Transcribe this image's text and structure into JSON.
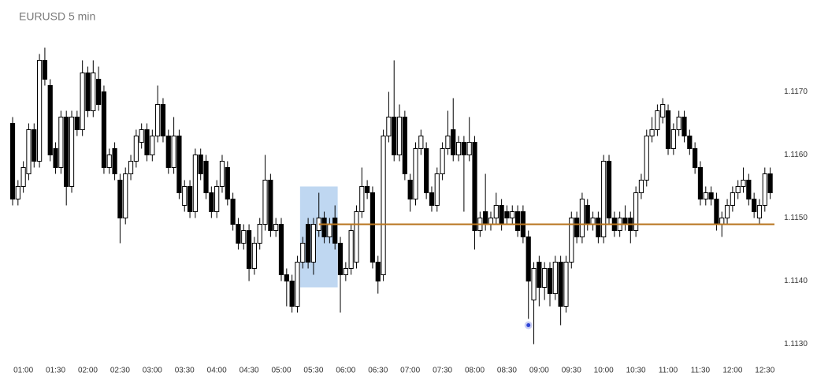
{
  "chart_data": {
    "type": "candlestick",
    "title": "EURUSD 5 min",
    "categories": [
      null,
      null,
      "01:00",
      null,
      null,
      null,
      null,
      null,
      "01:30",
      null,
      null,
      null,
      null,
      null,
      "02:00",
      null,
      null,
      null,
      null,
      null,
      "02:30",
      null,
      null,
      null,
      null,
      null,
      "03:00",
      null,
      null,
      null,
      null,
      null,
      "03:30",
      null,
      null,
      null,
      null,
      null,
      "04:00",
      null,
      null,
      null,
      null,
      null,
      "04:30",
      null,
      null,
      null,
      null,
      null,
      "05:00",
      null,
      null,
      null,
      null,
      null,
      "05:30",
      null,
      null,
      null,
      null,
      null,
      "06:00",
      null,
      null,
      null,
      null,
      null,
      "06:30",
      null,
      null,
      null,
      null,
      null,
      "07:00",
      null,
      null,
      null,
      null,
      null,
      "07:30",
      null,
      null,
      null,
      null,
      null,
      "08:00",
      null,
      null,
      null,
      null,
      null,
      "08:30",
      null,
      null,
      null,
      null,
      null,
      "09:00",
      null,
      null,
      null,
      null,
      null,
      "09:30",
      null,
      null,
      null,
      null,
      null,
      "10:00",
      null,
      null,
      null,
      null,
      null,
      "10:30",
      null,
      null,
      null,
      null,
      null,
      "11:00",
      null,
      null,
      null,
      null,
      null,
      "11:30",
      null,
      null,
      null,
      null,
      null,
      "12:00",
      null,
      null,
      null,
      null,
      null,
      "12:30",
      null
    ],
    "open": [
      1.1165,
      1.1153,
      1.1155,
      1.1157,
      1.1164,
      1.1159,
      1.1175,
      1.1171,
      1.1161,
      1.1158,
      1.1166,
      1.1155,
      1.1166,
      1.1164,
      1.1173,
      1.1167,
      1.1172,
      1.117,
      1.1158,
      1.1161,
      1.1156,
      1.115,
      1.1157,
      1.1159,
      1.1162,
      1.1164,
      1.116,
      1.1163,
      1.1168,
      1.1163,
      1.1158,
      1.1163,
      1.1152,
      1.1155,
      1.1151,
      1.116,
      1.1159,
      1.1154,
      1.1151,
      1.1155,
      1.1158,
      1.1153,
      1.1149,
      1.1146,
      1.1148,
      1.1142,
      1.1146,
      1.1149,
      1.1156,
      1.1148,
      1.1149,
      1.1141,
      1.114,
      1.1136,
      1.1143,
      1.1149,
      1.1143,
      1.1148,
      1.115,
      1.1147,
      1.115,
      1.1146,
      1.1141,
      1.1142,
      1.1143,
      1.1151,
      1.1155,
      1.1154,
      1.1143,
      1.1141,
      1.1163,
      1.1166,
      1.116,
      1.1166,
      1.1156,
      1.1153,
      1.1161,
      1.1161,
      1.1154,
      1.1152,
      1.1157,
      1.1161,
      1.1164,
      1.116,
      1.1162,
      1.116,
      1.1162,
      1.1148,
      1.1151,
      1.1149,
      1.115,
      1.1152,
      1.1151,
      1.115,
      1.1151,
      1.1151,
      1.1147,
      1.1137,
      1.1143,
      1.1139,
      1.1142,
      1.1138,
      1.1143,
      1.1136,
      1.1143,
      1.115,
      1.1147,
      1.1152,
      1.1149,
      1.115,
      1.1147,
      1.1159,
      1.115,
      1.1148,
      1.115,
      1.115,
      1.1148,
      1.1154,
      1.1156,
      1.1163,
      1.1164,
      1.1166,
      1.1167,
      1.1161,
      1.1164,
      1.1166,
      1.1163,
      1.1161,
      1.1158,
      1.1153,
      1.1154,
      1.1153,
      1.1149,
      1.115,
      1.1152,
      1.1154,
      1.1155,
      1.1156,
      1.1153,
      1.115,
      1.1152,
      1.1157
    ],
    "high": [
      1.1166,
      1.1156,
      1.1159,
      1.1165,
      1.1165,
      1.1176,
      1.1177,
      1.1172,
      1.1162,
      1.1167,
      1.1167,
      1.1167,
      1.1167,
      1.1175,
      1.1174,
      1.1175,
      1.1174,
      1.1171,
      1.1161,
      1.1162,
      1.1157,
      1.1158,
      1.116,
      1.1164,
      1.1165,
      1.1165,
      1.1164,
      1.1171,
      1.1169,
      1.1164,
      1.1166,
      1.1164,
      1.1156,
      1.1156,
      1.1161,
      1.1161,
      1.116,
      1.1155,
      1.1156,
      1.116,
      1.1159,
      1.1154,
      1.115,
      1.1149,
      1.1149,
      1.1147,
      1.115,
      1.116,
      1.1157,
      1.115,
      1.115,
      1.1142,
      1.1141,
      1.1144,
      1.1147,
      1.115,
      1.115,
      1.1154,
      1.1151,
      1.115,
      1.1152,
      1.1147,
      1.1143,
      1.1149,
      1.1152,
      1.1158,
      1.1156,
      1.1155,
      1.1144,
      1.1164,
      1.117,
      1.1175,
      1.1168,
      1.1167,
      1.1157,
      1.1162,
      1.1164,
      1.1162,
      1.1155,
      1.1158,
      1.1162,
      1.1167,
      1.1169,
      1.1163,
      1.1163,
      1.1166,
      1.1163,
      1.1151,
      1.1157,
      1.1151,
      1.1154,
      1.1153,
      1.1152,
      1.1152,
      1.1152,
      1.1152,
      1.1148,
      1.1143,
      1.1144,
      1.1143,
      1.1143,
      1.1144,
      1.1144,
      1.1144,
      1.1151,
      1.1151,
      1.1154,
      1.1153,
      1.1151,
      1.1151,
      1.116,
      1.116,
      1.1151,
      1.1151,
      1.1152,
      1.1151,
      1.1155,
      1.1157,
      1.1164,
      1.1166,
      1.1168,
      1.1169,
      1.1168,
      1.1165,
      1.1167,
      1.1167,
      1.1164,
      1.1162,
      1.1159,
      1.1155,
      1.1155,
      1.1154,
      1.1151,
      1.1153,
      1.1155,
      1.1156,
      1.1158,
      1.1157,
      1.1154,
      1.1153,
      1.1158,
      1.1158
    ],
    "low": [
      1.1152,
      1.1152,
      1.1154,
      1.1156,
      1.1158,
      1.1158,
      1.1171,
      1.1159,
      1.1157,
      1.1157,
      1.1152,
      1.1154,
      1.1163,
      1.1163,
      1.1166,
      1.1166,
      1.1167,
      1.1157,
      1.1157,
      1.1156,
      1.1146,
      1.1149,
      1.1156,
      1.1158,
      1.1161,
      1.1159,
      1.1159,
      1.1162,
      1.1162,
      1.1157,
      1.1157,
      1.1153,
      1.1151,
      1.115,
      1.115,
      1.1156,
      1.1153,
      1.115,
      1.115,
      1.1154,
      1.1152,
      1.1148,
      1.1145,
      1.1145,
      1.114,
      1.1141,
      1.1145,
      1.1148,
      1.1147,
      1.1147,
      1.114,
      1.1136,
      1.1135,
      1.1135,
      1.1142,
      1.1142,
      1.1141,
      1.1147,
      1.1146,
      1.1146,
      1.1145,
      1.1135,
      1.114,
      1.1141,
      1.1142,
      1.115,
      1.1153,
      1.1142,
      1.1138,
      1.114,
      1.1162,
      1.1159,
      1.1159,
      1.1156,
      1.1151,
      1.1152,
      1.116,
      1.1153,
      1.1151,
      1.1151,
      1.1156,
      1.116,
      1.1159,
      1.1159,
      1.1151,
      1.1159,
      1.1145,
      1.1147,
      1.1148,
      1.1148,
      1.1149,
      1.1148,
      1.1149,
      1.1149,
      1.1147,
      1.1146,
      1.1134,
      1.113,
      1.1136,
      1.1137,
      1.1136,
      1.1137,
      1.1133,
      1.1135,
      1.1142,
      1.1146,
      1.1146,
      1.1148,
      1.1148,
      1.1146,
      1.1146,
      1.1149,
      1.1147,
      1.1147,
      1.1148,
      1.1146,
      1.1147,
      1.1153,
      1.1155,
      1.1162,
      1.1163,
      1.1165,
      1.116,
      1.116,
      1.1163,
      1.1162,
      1.116,
      1.1157,
      1.1152,
      1.1152,
      1.1152,
      1.1148,
      1.1147,
      1.1149,
      1.1151,
      1.1153,
      1.1154,
      1.1152,
      1.115,
      1.1149,
      1.1151,
      1.1153
    ],
    "close": [
      1.1153,
      1.1155,
      1.1158,
      1.1164,
      1.1159,
      1.1175,
      1.1172,
      1.116,
      1.1158,
      1.1166,
      1.1155,
      1.1166,
      1.1164,
      1.1173,
      1.1167,
      1.1173,
      1.1168,
      1.1158,
      1.116,
      1.1157,
      1.115,
      1.1157,
      1.1159,
      1.1163,
      1.1164,
      1.116,
      1.1163,
      1.1168,
      1.1163,
      1.1158,
      1.1163,
      1.1154,
      1.1155,
      1.1151,
      1.116,
      1.1157,
      1.1154,
      1.1151,
      1.1155,
      1.1159,
      1.1153,
      1.1149,
      1.1146,
      1.1148,
      1.1142,
      1.1146,
      1.1149,
      1.1156,
      1.1148,
      1.1149,
      1.1141,
      1.114,
      1.1136,
      1.1143,
      1.1146,
      1.1143,
      1.1149,
      1.115,
      1.1147,
      1.1149,
      1.1146,
      1.1141,
      1.1142,
      1.1148,
      1.1151,
      1.1155,
      1.1154,
      1.1143,
      1.114,
      1.1163,
      1.1166,
      1.116,
      1.1166,
      1.1157,
      1.1153,
      1.1161,
      1.1163,
      1.1154,
      1.1152,
      1.1157,
      1.1161,
      1.1163,
      1.116,
      1.1162,
      1.116,
      1.1162,
      1.1148,
      1.115,
      1.1149,
      1.115,
      1.1152,
      1.1149,
      1.115,
      1.1151,
      1.1148,
      1.1147,
      1.114,
      1.1142,
      1.1139,
      1.1142,
      1.1138,
      1.1143,
      1.1136,
      1.1143,
      1.115,
      1.1147,
      1.1153,
      1.1149,
      1.115,
      1.1147,
      1.1159,
      1.115,
      1.1148,
      1.115,
      1.1149,
      1.1148,
      1.1154,
      1.1156,
      1.1163,
      1.1164,
      1.1167,
      1.1168,
      1.1161,
      1.1164,
      1.1166,
      1.1163,
      1.1161,
      1.1158,
      1.1153,
      1.1154,
      1.1153,
      1.1149,
      1.115,
      1.1152,
      1.1154,
      1.1155,
      1.1156,
      1.1153,
      1.1151,
      1.1152,
      1.1157,
      1.1154
    ],
    "up_color": "#ffffff",
    "down_color": "#000000",
    "ylim": [
      1.1128,
      1.1185
    ],
    "yticks": [
      {
        "value": 1.113,
        "label": "1.1130"
      },
      {
        "value": 1.114,
        "label": "1.1140"
      },
      {
        "value": 1.115,
        "label": "1.1150"
      },
      {
        "value": 1.116,
        "label": "1.1160"
      },
      {
        "value": 1.117,
        "label": "1.1170"
      }
    ],
    "grid": false,
    "hline": {
      "value": 1.1149,
      "from": 57,
      "color": "#b8751f"
    },
    "highlight": {
      "from": 54,
      "to": 60,
      "y": [
        1.1155,
        1.1139
      ],
      "color": "#a9c9ec"
    },
    "marker": {
      "index": 96,
      "value": 1.1133,
      "color": "#2f45d6"
    }
  }
}
